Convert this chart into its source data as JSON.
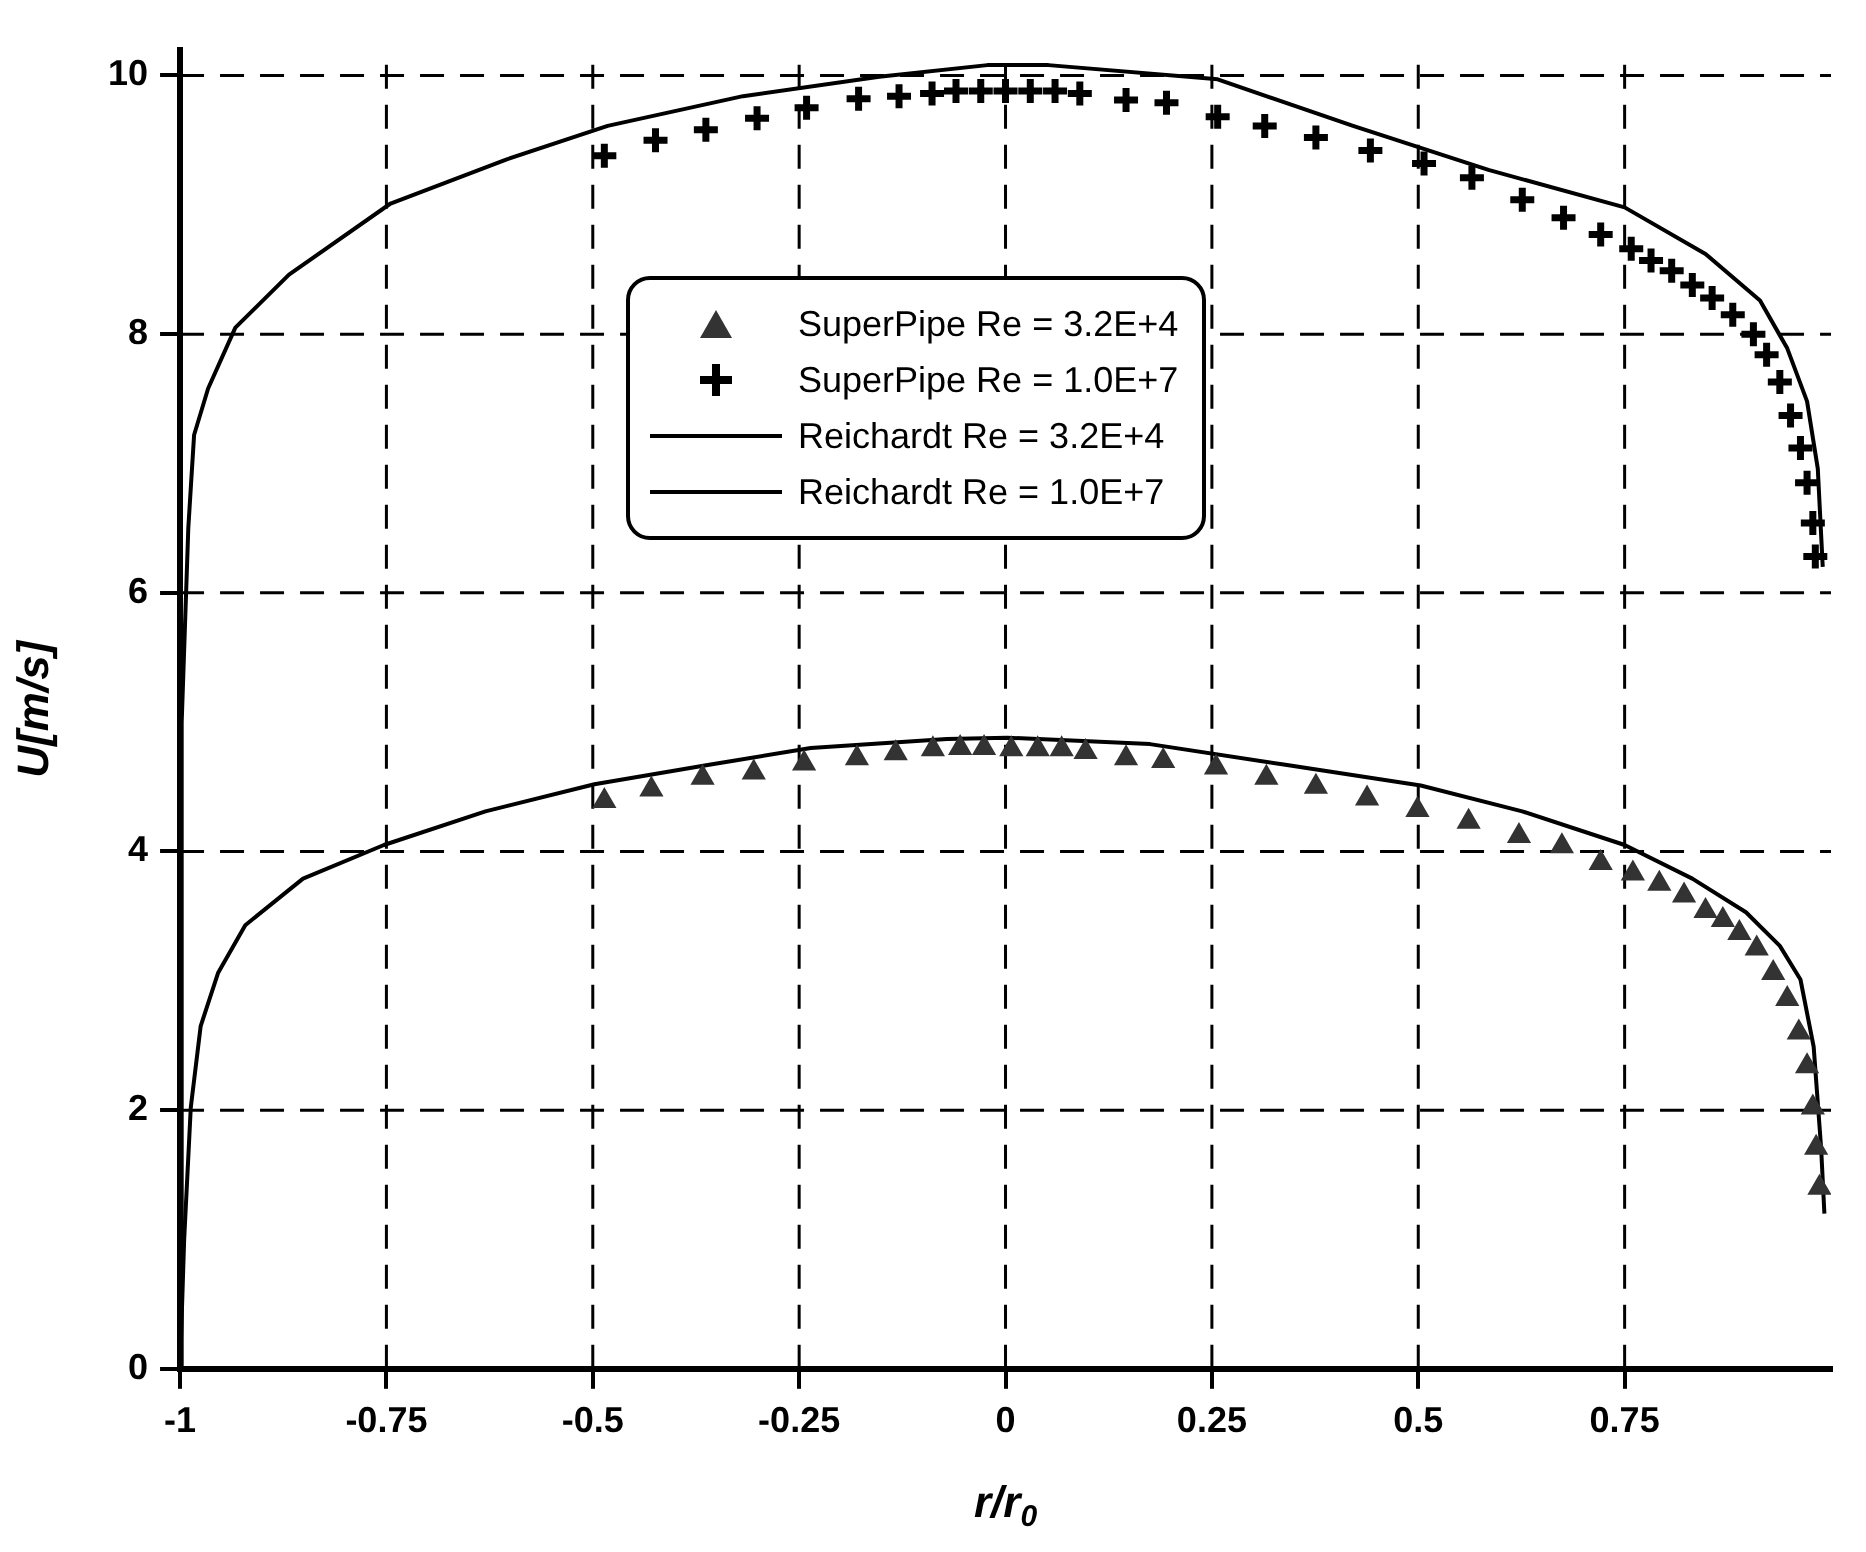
{
  "chart_data": {
    "type": "line",
    "xlabel": "r/r$_{0}$",
    "ylabel": "U[m/s]",
    "xlim": [
      -1,
      1
    ],
    "xticks": [
      -1,
      -0.75,
      -0.5,
      -0.25,
      0,
      0.25,
      0.5,
      0.75
    ],
    "ylim": [
      0,
      10.2
    ],
    "yticks": [
      0,
      2,
      4,
      6,
      8,
      10
    ],
    "grid": true,
    "legend": "top",
    "series": [
      {
        "name": "SuperPipe Re = 3.2E+4",
        "type": "scatter",
        "marker": "triangle",
        "color": "#333333",
        "x": [
          -0.486,
          -0.429,
          -0.367,
          -0.305,
          -0.244,
          -0.18,
          -0.133,
          -0.088,
          -0.055,
          -0.026,
          0.007,
          0.039,
          0.068,
          0.097,
          0.146,
          0.191,
          0.255,
          0.316,
          0.376,
          0.438,
          0.499,
          0.561,
          0.622,
          0.674,
          0.721,
          0.76,
          0.792,
          0.822,
          0.848,
          0.869,
          0.889,
          0.91,
          0.93,
          0.947,
          0.961,
          0.971,
          0.978,
          0.982,
          0.986
        ],
        "values": [
          4.39,
          4.48,
          4.57,
          4.61,
          4.68,
          4.72,
          4.76,
          4.79,
          4.8,
          4.8,
          4.79,
          4.79,
          4.79,
          4.77,
          4.72,
          4.7,
          4.65,
          4.57,
          4.5,
          4.41,
          4.32,
          4.23,
          4.12,
          4.04,
          3.91,
          3.83,
          3.75,
          3.66,
          3.54,
          3.47,
          3.37,
          3.25,
          3.06,
          2.86,
          2.6,
          2.34,
          2.02,
          1.71,
          1.4
        ]
      },
      {
        "name": "SuperPipe Re = 1.0E+7",
        "type": "scatter",
        "marker": "cross",
        "color": "#000000",
        "x": [
          -0.486,
          -0.424,
          -0.363,
          -0.301,
          -0.241,
          -0.178,
          -0.129,
          -0.089,
          -0.06,
          -0.03,
          0,
          0.03,
          0.06,
          0.09,
          0.146,
          0.195,
          0.257,
          0.314,
          0.376,
          0.442,
          0.507,
          0.565,
          0.626,
          0.676,
          0.721,
          0.758,
          0.782,
          0.807,
          0.832,
          0.856,
          0.881,
          0.906,
          0.922,
          0.938,
          0.951,
          0.963,
          0.971,
          0.978,
          0.981
        ],
        "values": [
          9.38,
          9.5,
          9.58,
          9.67,
          9.75,
          9.82,
          9.84,
          9.86,
          9.88,
          9.88,
          9.88,
          9.88,
          9.88,
          9.86,
          9.81,
          9.79,
          9.68,
          9.61,
          9.52,
          9.42,
          9.32,
          9.21,
          9.04,
          8.9,
          8.77,
          8.66,
          8.57,
          8.49,
          8.38,
          8.28,
          8.15,
          8.0,
          7.84,
          7.63,
          7.37,
          7.12,
          6.85,
          6.54,
          6.28
        ]
      },
      {
        "name": "Reichardt Re = 3.2E+4",
        "type": "line",
        "marker": "none",
        "line_style": "solid",
        "color": "#000000",
        "x": [
          -1,
          -0.995,
          -0.987,
          -0.975,
          -0.954,
          -0.921,
          -0.851,
          -0.753,
          -0.63,
          -0.498,
          -0.359,
          -0.236,
          -0.071,
          0.002,
          0.175,
          0.339,
          0.503,
          0.626,
          0.75,
          0.832,
          0.897,
          0.938,
          0.963,
          0.979,
          0.988,
          0.992
        ],
        "values": [
          0,
          1.0,
          2.02,
          2.65,
          3.06,
          3.43,
          3.79,
          4.05,
          4.31,
          4.52,
          4.67,
          4.8,
          4.87,
          4.88,
          4.83,
          4.67,
          4.51,
          4.31,
          4.05,
          3.79,
          3.53,
          3.27,
          3.01,
          2.49,
          1.71,
          1.2
        ]
      },
      {
        "name": "Reichardt Re = 1.0E+7",
        "type": "line",
        "marker": "none",
        "line_style": "solid",
        "color": "#000000",
        "x": [
          -1,
          -0.998,
          -0.99,
          -0.983,
          -0.966,
          -0.933,
          -0.868,
          -0.745,
          -0.605,
          -0.482,
          -0.318,
          -0.153,
          -0.022,
          0.052,
          0.257,
          0.421,
          0.585,
          0.75,
          0.848,
          0.914,
          0.947,
          0.971,
          0.984,
          0.99
        ],
        "values": [
          0,
          5.0,
          6.5,
          7.22,
          7.58,
          8.05,
          8.46,
          9.01,
          9.35,
          9.61,
          9.84,
          9.99,
          10.08,
          10.08,
          9.97,
          9.61,
          9.27,
          8.98,
          8.62,
          8.26,
          7.89,
          7.48,
          6.96,
          6.2
        ]
      }
    ]
  }
}
